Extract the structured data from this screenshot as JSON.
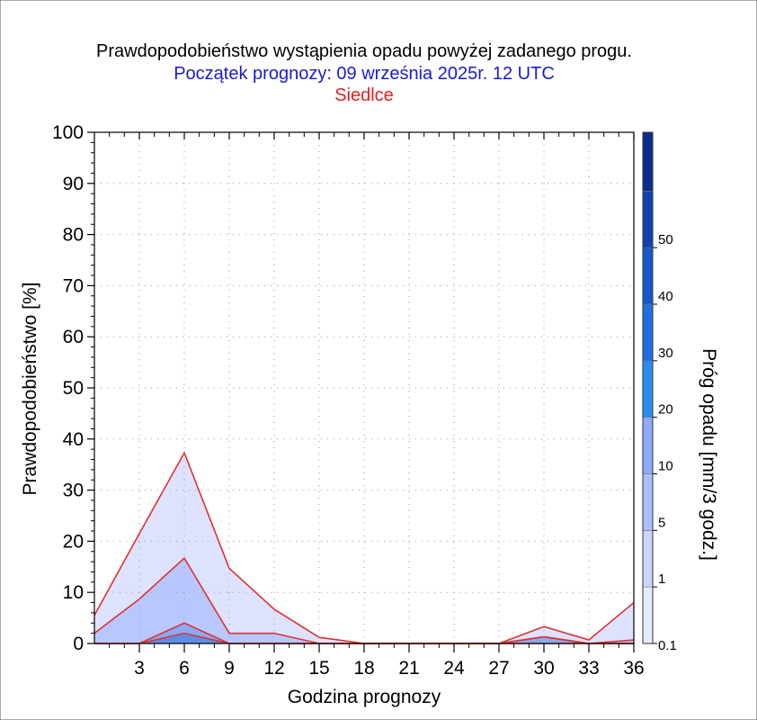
{
  "colors": {
    "subtitle": "#1a1ad0",
    "station": "#e02020",
    "series_line": "#e03030",
    "background": "#ffffff"
  },
  "chart_data": {
    "type": "area",
    "title": "Prawdopodobieństwo wystąpienia opadu powyżej zadanego progu.",
    "subtitle": "Początek prognozy: 09 września 2025r. 12 UTC",
    "station": "Siedlce",
    "xlabel": "Godzina prognozy",
    "ylabel": "Prawdopodobieństwo [%]",
    "colorbar_label": "Próg opadu [mm/3 godz.]",
    "xlim": [
      0,
      36
    ],
    "ylim": [
      0,
      100
    ],
    "x_ticks": [
      3,
      6,
      9,
      12,
      15,
      18,
      21,
      24,
      27,
      30,
      33,
      36
    ],
    "y_ticks": [
      0,
      10,
      20,
      30,
      40,
      50,
      60,
      70,
      80,
      90,
      100
    ],
    "x": [
      0,
      3,
      6,
      9,
      12,
      15,
      18,
      21,
      24,
      27,
      30,
      33,
      36
    ],
    "series": [
      {
        "threshold": "0.1",
        "color": "#dde3ff",
        "values": [
          5.5,
          21.5,
          37.3,
          14.7,
          6.7,
          1.2,
          0,
          0,
          0,
          0,
          3.3,
          0.7,
          8.0
        ]
      },
      {
        "threshold": "1",
        "color": "#b8c8ff",
        "values": [
          2.0,
          8.7,
          16.7,
          2.0,
          2.0,
          0,
          0,
          0,
          0,
          0,
          1.3,
          0,
          0.7
        ]
      },
      {
        "threshold": "5",
        "color": "#8aaaf2",
        "values": [
          0,
          0,
          4.0,
          0,
          0,
          0,
          0,
          0,
          0,
          0,
          1.3,
          0,
          0
        ]
      },
      {
        "threshold": "10",
        "color": "#5f8ee6",
        "values": [
          0,
          0,
          2.0,
          0,
          0,
          0,
          0,
          0,
          0,
          0,
          0,
          0,
          0
        ]
      }
    ],
    "colorbar": {
      "labels": [
        "0.1",
        "1",
        "5",
        "10",
        "20",
        "30",
        "40",
        "50"
      ],
      "colors": [
        "#e6ebff",
        "#c9d6ff",
        "#aabfff",
        "#8eaaff",
        "#2b8cf0",
        "#1d70e0",
        "#1558c8",
        "#1040b0",
        "#0a2e90"
      ]
    },
    "grid": "dotted",
    "legend": "colorbar-right"
  }
}
